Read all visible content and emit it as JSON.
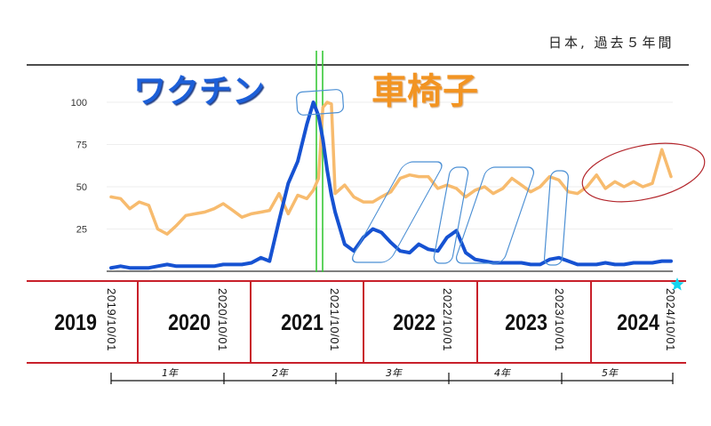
{
  "header": {
    "caption": "日本, 過去５年間"
  },
  "colors": {
    "vaccine_label": "#1d5fd8",
    "wheelchair_label": "#f29424",
    "timeline_red": "#c8202a",
    "marker_green": "#37c837",
    "highlight_blue": "#4b8fd4",
    "ellipse_red": "#b3262c",
    "star": "#12d4ef",
    "axis": "#333333"
  },
  "timeline": {
    "years": [
      "2019",
      "2020",
      "2021",
      "2022",
      "2023",
      "2024"
    ],
    "dates": [
      "2019/10/01",
      "2020/10/01",
      "2021/10/01",
      "2022/10/01",
      "2023/10/01",
      "2024/10/01"
    ],
    "spans": [
      "1年",
      "2年",
      "3年",
      "4年",
      "5年"
    ]
  },
  "chart_data": {
    "type": "line",
    "xlim": [
      "2019-10-01",
      "2024-10-01"
    ],
    "ylim": [
      0,
      100
    ],
    "yticks": [
      100,
      75,
      50,
      25
    ],
    "grid": true,
    "legend": "top",
    "x": [
      "2019-10-01",
      "2019-11-01",
      "2019-12-01",
      "2020-01-01",
      "2020-02-01",
      "2020-03-01",
      "2020-04-01",
      "2020-05-01",
      "2020-06-01",
      "2020-07-01",
      "2020-08-01",
      "2020-09-01",
      "2020-10-01",
      "2020-11-01",
      "2020-12-01",
      "2021-01-01",
      "2021-02-01",
      "2021-03-01",
      "2021-04-01",
      "2021-05-01",
      "2021-06-01",
      "2021-07-01",
      "2021-07-22",
      "2021-08-08",
      "2021-08-22",
      "2021-09-05",
      "2021-09-19",
      "2021-10-01",
      "2021-11-01",
      "2021-12-01",
      "2022-01-01",
      "2022-02-01",
      "2022-03-01",
      "2022-04-01",
      "2022-05-01",
      "2022-06-01",
      "2022-07-01",
      "2022-08-01",
      "2022-09-01",
      "2022-10-01",
      "2022-11-01",
      "2022-12-01",
      "2023-01-01",
      "2023-02-01",
      "2023-03-01",
      "2023-04-01",
      "2023-05-01",
      "2023-06-01",
      "2023-07-01",
      "2023-08-01",
      "2023-09-01",
      "2023-10-01",
      "2023-11-01",
      "2023-12-01",
      "2024-01-01",
      "2024-02-01",
      "2024-03-01",
      "2024-04-01",
      "2024-05-01",
      "2024-06-01",
      "2024-07-01",
      "2024-08-01",
      "2024-09-01",
      "2024-10-01"
    ],
    "series": [
      {
        "name": "ワクチン",
        "color": "#1652d2",
        "values": [
          2,
          3,
          2,
          2,
          2,
          3,
          4,
          3,
          3,
          3,
          3,
          3,
          4,
          4,
          4,
          5,
          8,
          6,
          30,
          52,
          65,
          87,
          100,
          92,
          78,
          60,
          45,
          35,
          16,
          12,
          20,
          25,
          23,
          17,
          12,
          11,
          16,
          13,
          12,
          20,
          24,
          11,
          7,
          6,
          5,
          5,
          5,
          5,
          4,
          4,
          7,
          8,
          6,
          4,
          4,
          4,
          5,
          4,
          4,
          5,
          5,
          5,
          6,
          6
        ]
      },
      {
        "name": "車椅子",
        "color": "#f7bb6e",
        "values": [
          44,
          43,
          37,
          41,
          39,
          25,
          22,
          27,
          33,
          34,
          35,
          37,
          40,
          36,
          32,
          34,
          35,
          36,
          46,
          34,
          45,
          43,
          48,
          55,
          97,
          100,
          99,
          46,
          51,
          44,
          41,
          41,
          44,
          47,
          55,
          57,
          56,
          56,
          49,
          51,
          49,
          44,
          48,
          50,
          46,
          49,
          55,
          51,
          47,
          50,
          56,
          54,
          47,
          46,
          50,
          57,
          49,
          53,
          50,
          53,
          50,
          52,
          72,
          56
        ]
      }
    ]
  }
}
